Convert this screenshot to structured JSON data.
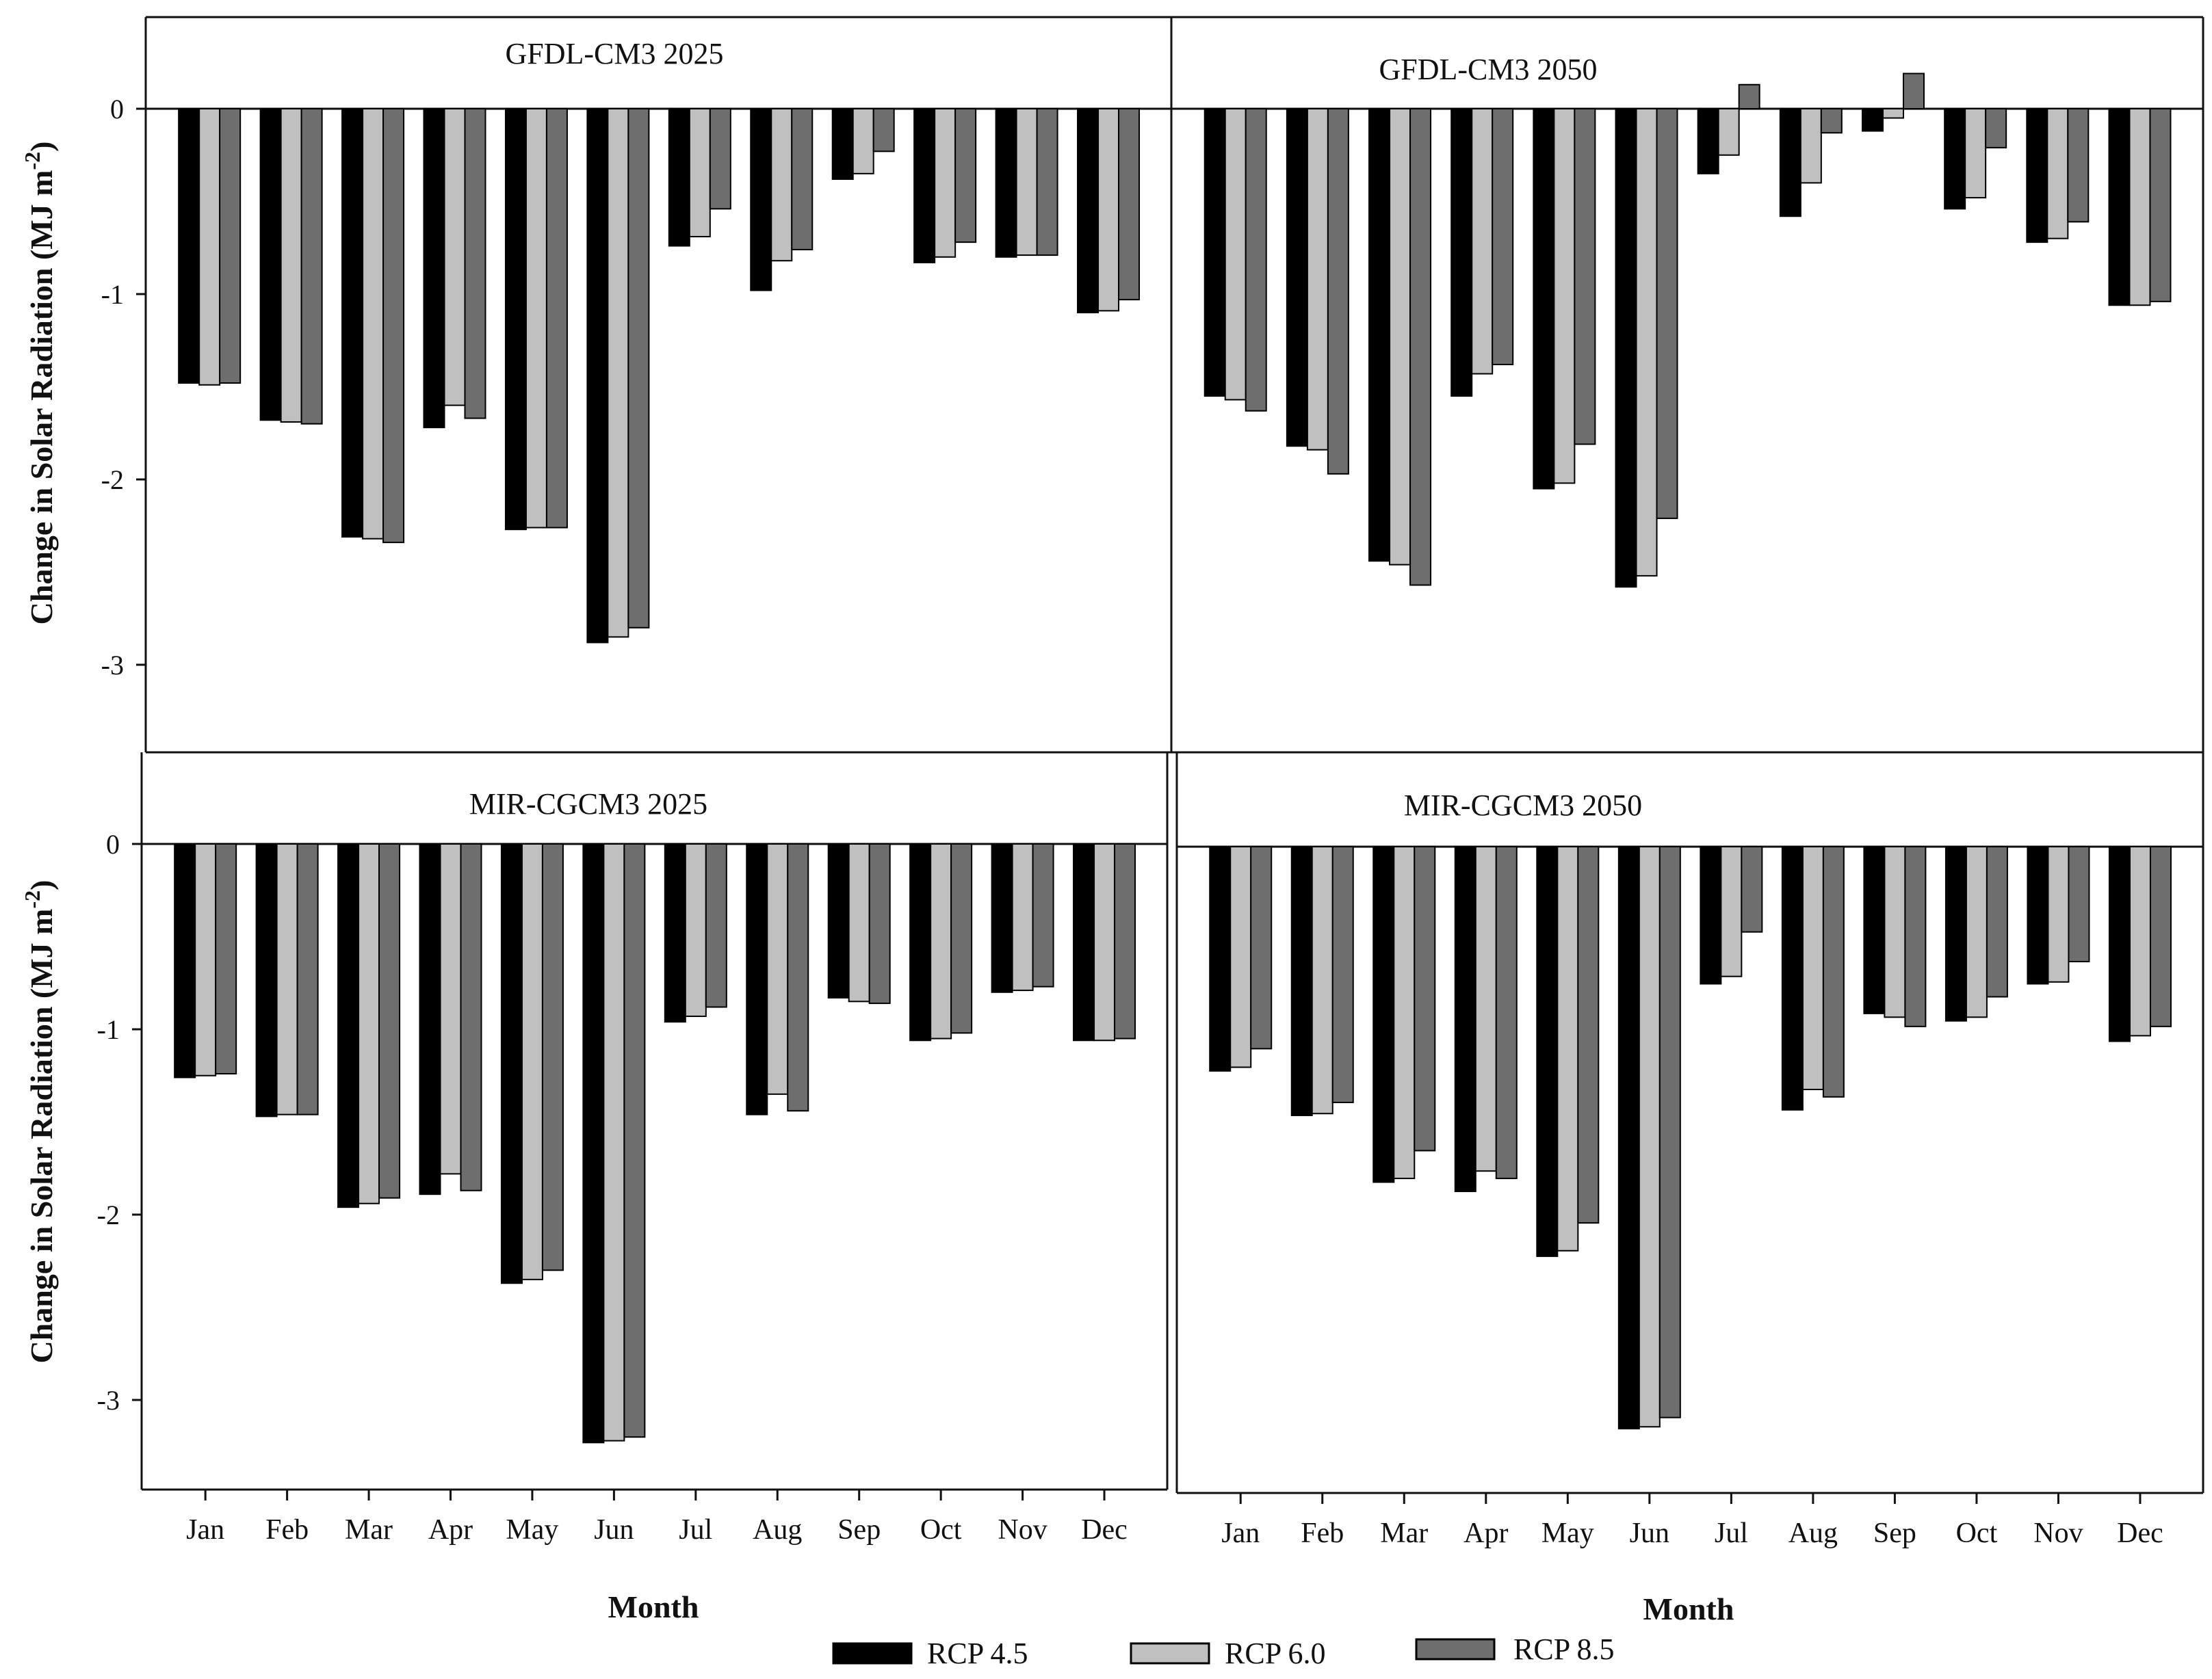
{
  "figure": {
    "colors": {
      "rcp45": "#000000",
      "rcp60": "#c0c0c0",
      "rcp85": "#6e6e6e",
      "frame": "#111111"
    }
  },
  "y_axis_label": {
    "main": "Change in Solar Radiation (MJ m",
    "sup": "-2",
    "close": ")"
  },
  "x_axis_label": "Month",
  "legend": [
    {
      "key": "rcp45",
      "label": "RCP 4.5"
    },
    {
      "key": "rcp60",
      "label": "RCP 6.0"
    },
    {
      "key": "rcp85",
      "label": "RCP 8.5"
    }
  ],
  "chart_data": [
    {
      "type": "bar",
      "title": "GFDL-CM3 2025",
      "categories": [
        "Jan",
        "Feb",
        "Mar",
        "Apr",
        "May",
        "Jun",
        "Jul",
        "Aug",
        "Sep",
        "Oct",
        "Nov",
        "Dec"
      ],
      "ylim": [
        -3.5,
        0.5
      ],
      "yticks": [
        0,
        -1,
        -2,
        -3
      ],
      "series": [
        {
          "name": "RCP 4.5",
          "values": [
            -1.48,
            -1.68,
            -2.31,
            -1.72,
            -2.27,
            -2.88,
            -0.74,
            -0.98,
            -0.38,
            -0.83,
            -0.8,
            -1.1
          ]
        },
        {
          "name": "RCP 6.0",
          "values": [
            -1.49,
            -1.69,
            -2.32,
            -1.6,
            -2.26,
            -2.85,
            -0.69,
            -0.82,
            -0.35,
            -0.8,
            -0.79,
            -1.09
          ]
        },
        {
          "name": "RCP 8.5",
          "values": [
            -1.48,
            -1.7,
            -2.34,
            -1.67,
            -2.26,
            -2.8,
            -0.54,
            -0.76,
            -0.23,
            -0.72,
            -0.79,
            -1.03
          ]
        }
      ]
    },
    {
      "type": "bar",
      "title": "GFDL-CM3 2050",
      "categories": [
        "Jan",
        "Feb",
        "Mar",
        "Apr",
        "May",
        "Jun",
        "Jul",
        "Aug",
        "Sep",
        "Oct",
        "Nov",
        "Dec"
      ],
      "ylim": [
        -3.5,
        0.5
      ],
      "yticks": [
        0,
        -1,
        -2,
        -3
      ],
      "series": [
        {
          "name": "RCP 4.5",
          "values": [
            -1.55,
            -1.82,
            -2.44,
            -1.55,
            -2.05,
            -2.58,
            -0.35,
            -0.58,
            -0.12,
            -0.54,
            -0.72,
            -1.06
          ]
        },
        {
          "name": "RCP 6.0",
          "values": [
            -1.57,
            -1.84,
            -2.46,
            -1.43,
            -2.02,
            -2.52,
            -0.25,
            -0.4,
            -0.05,
            -0.48,
            -0.7,
            -1.06
          ]
        },
        {
          "name": "RCP 8.5",
          "values": [
            -1.63,
            -1.97,
            -2.57,
            -1.38,
            -1.81,
            -2.21,
            0.13,
            -0.13,
            0.19,
            -0.21,
            -0.61,
            -1.04
          ]
        }
      ]
    },
    {
      "type": "bar",
      "title": "MIR-CGCM3 2025",
      "categories": [
        "Jan",
        "Feb",
        "Mar",
        "Apr",
        "May",
        "Jun",
        "Jul",
        "Aug",
        "Sep",
        "Oct",
        "Nov",
        "Dec"
      ],
      "ylim": [
        -3.5,
        0.5
      ],
      "yticks": [
        0,
        -1,
        -2,
        -3
      ],
      "series": [
        {
          "name": "RCP 4.5",
          "values": [
            -1.26,
            -1.47,
            -1.96,
            -1.89,
            -2.37,
            -3.23,
            -0.96,
            -1.46,
            -0.83,
            -1.06,
            -0.8,
            -1.06
          ]
        },
        {
          "name": "RCP 6.0",
          "values": [
            -1.25,
            -1.46,
            -1.94,
            -1.78,
            -2.35,
            -3.22,
            -0.93,
            -1.35,
            -0.85,
            -1.05,
            -0.79,
            -1.06
          ]
        },
        {
          "name": "RCP 8.5",
          "values": [
            -1.24,
            -1.46,
            -1.91,
            -1.87,
            -2.3,
            -3.2,
            -0.88,
            -1.44,
            -0.86,
            -1.02,
            -0.77,
            -1.05
          ]
        }
      ]
    },
    {
      "type": "bar",
      "title": "MIR-CGCM3 2050",
      "categories": [
        "Jan",
        "Feb",
        "Mar",
        "Apr",
        "May",
        "Jun",
        "Jul",
        "Aug",
        "Sep",
        "Oct",
        "Nov",
        "Dec"
      ],
      "ylim": [
        -3.5,
        0.5
      ],
      "yticks": [
        0,
        -1,
        -2,
        -3
      ],
      "series": [
        {
          "name": "RCP 4.5",
          "values": [
            -1.21,
            -1.45,
            -1.81,
            -1.86,
            -2.21,
            -3.14,
            -0.74,
            -1.42,
            -0.9,
            -0.94,
            -0.74,
            -1.05
          ]
        },
        {
          "name": "RCP 6.0",
          "values": [
            -1.19,
            -1.44,
            -1.79,
            -1.75,
            -2.18,
            -3.13,
            -0.7,
            -1.31,
            -0.92,
            -0.92,
            -0.73,
            -1.02
          ]
        },
        {
          "name": "RCP 8.5",
          "values": [
            -1.09,
            -1.38,
            -1.64,
            -1.79,
            -2.03,
            -3.08,
            -0.46,
            -1.35,
            -0.97,
            -0.81,
            -0.62,
            -0.97
          ]
        }
      ]
    }
  ]
}
